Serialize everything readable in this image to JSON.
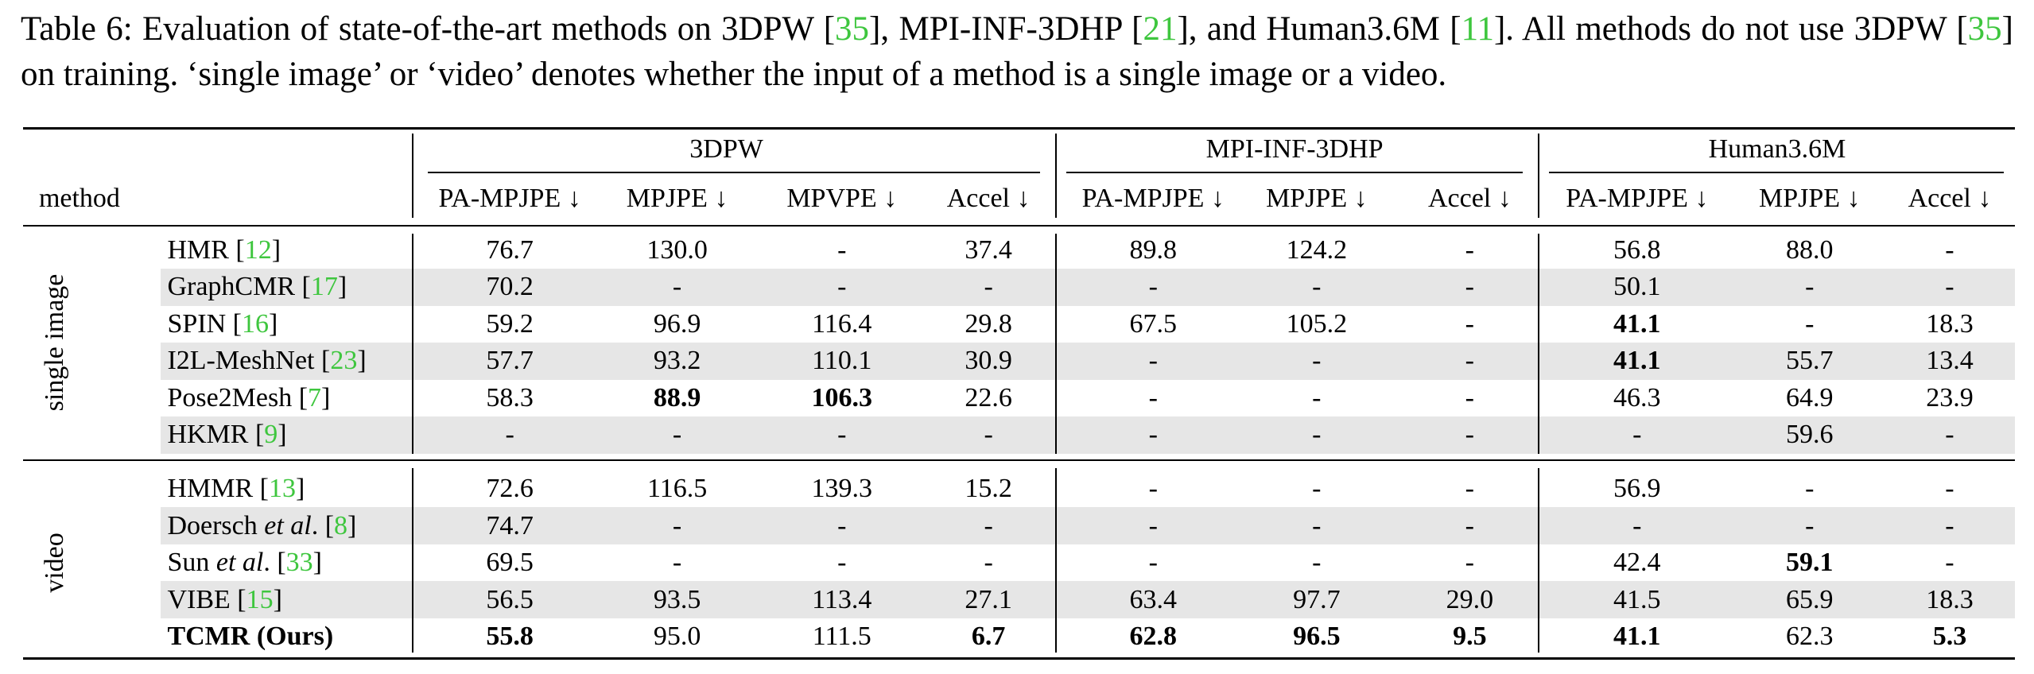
{
  "caption": [
    "Table 6: Evaluation of state-of-the-art methods on 3DPW [",
    "35",
    "], MPI-INF-3DHP [",
    "21",
    "], and Human3.6M [",
    "11",
    "]. All methods do not use 3DPW [",
    "35",
    "] on training. ‘single image’ or ‘video’ denotes whether the input of a method is a single image or a video."
  ],
  "table": {
    "method_header": "method",
    "datasets": [
      {
        "name": "3DPW",
        "columns": [
          "PA-MPJPE ↓",
          "MPJPE ↓",
          "MPVPE ↓",
          "Accel ↓"
        ]
      },
      {
        "name": "MPI-INF-3DHP",
        "columns": [
          "PA-MPJPE ↓",
          "MPJPE ↓",
          "Accel ↓"
        ]
      },
      {
        "name": "Human3.6M",
        "columns": [
          "PA-MPJPE ↓",
          "MPJPE ↓",
          "Accel ↓"
        ]
      }
    ],
    "groups": [
      {
        "label": "single image",
        "rows": [
          {
            "method": [
              {
                "text": "HMR ["
              },
              {
                "text": "12",
                "cite": true
              },
              {
                "text": "]"
              }
            ],
            "cells": [
              "76.7",
              "130.0",
              "-",
              "37.4",
              "89.8",
              "124.2",
              "-",
              "56.8",
              "88.0",
              "-"
            ],
            "bold": []
          },
          {
            "method": [
              {
                "text": "GraphCMR ["
              },
              {
                "text": "17",
                "cite": true
              },
              {
                "text": "]"
              }
            ],
            "cells": [
              "70.2",
              "-",
              "-",
              "-",
              "-",
              "-",
              "-",
              "50.1",
              "-",
              "-"
            ],
            "bold": []
          },
          {
            "method": [
              {
                "text": "SPIN ["
              },
              {
                "text": "16",
                "cite": true
              },
              {
                "text": "]"
              }
            ],
            "cells": [
              "59.2",
              "96.9",
              "116.4",
              "29.8",
              "67.5",
              "105.2",
              "-",
              "41.1",
              "-",
              "18.3"
            ],
            "bold": [
              7
            ]
          },
          {
            "method": [
              {
                "text": "I2L-MeshNet ["
              },
              {
                "text": "23",
                "cite": true
              },
              {
                "text": "]"
              }
            ],
            "cells": [
              "57.7",
              "93.2",
              "110.1",
              "30.9",
              "-",
              "-",
              "-",
              "41.1",
              "55.7",
              "13.4"
            ],
            "bold": [
              7
            ]
          },
          {
            "method": [
              {
                "text": "Pose2Mesh ["
              },
              {
                "text": "7",
                "cite": true
              },
              {
                "text": "]"
              }
            ],
            "cells": [
              "58.3",
              "88.9",
              "106.3",
              "22.6",
              "-",
              "-",
              "-",
              "46.3",
              "64.9",
              "23.9"
            ],
            "bold": [
              1,
              2
            ]
          },
          {
            "method": [
              {
                "text": "HKMR ["
              },
              {
                "text": "9",
                "cite": true
              },
              {
                "text": "]"
              }
            ],
            "cells": [
              "-",
              "-",
              "-",
              "-",
              "-",
              "-",
              "-",
              "-",
              "59.6",
              "-"
            ],
            "bold": []
          }
        ]
      },
      {
        "label": "video",
        "rows": [
          {
            "method": [
              {
                "text": "HMMR ["
              },
              {
                "text": "13",
                "cite": true
              },
              {
                "text": "]"
              }
            ],
            "cells": [
              "72.6",
              "116.5",
              "139.3",
              "15.2",
              "-",
              "-",
              "-",
              "56.9",
              "-",
              "-"
            ],
            "bold": []
          },
          {
            "method": [
              {
                "text": "Doersch "
              },
              {
                "text": "et al",
                "italic": true
              },
              {
                "text": ". ["
              },
              {
                "text": "8",
                "cite": true
              },
              {
                "text": "]"
              }
            ],
            "cells": [
              "74.7",
              "-",
              "-",
              "-",
              "-",
              "-",
              "-",
              "-",
              "-",
              "-"
            ],
            "bold": []
          },
          {
            "method": [
              {
                "text": "Sun "
              },
              {
                "text": "et al",
                "italic": true
              },
              {
                "text": ". ["
              },
              {
                "text": "33",
                "cite": true
              },
              {
                "text": "]"
              }
            ],
            "cells": [
              "69.5",
              "-",
              "-",
              "-",
              "-",
              "-",
              "-",
              "42.4",
              "59.1",
              "-"
            ],
            "bold": [
              8
            ]
          },
          {
            "method": [
              {
                "text": "VIBE ["
              },
              {
                "text": "15",
                "cite": true
              },
              {
                "text": "]"
              }
            ],
            "cells": [
              "56.5",
              "93.5",
              "113.4",
              "27.1",
              "63.4",
              "97.7",
              "29.0",
              "41.5",
              "65.9",
              "18.3"
            ],
            "bold": []
          },
          {
            "method": [
              {
                "text": "TCMR (Ours)",
                "bold": true
              }
            ],
            "cells": [
              "55.8",
              "95.0",
              "111.5",
              "6.7",
              "62.8",
              "96.5",
              "9.5",
              "41.1",
              "62.3",
              "5.3"
            ],
            "bold": [
              0,
              3,
              4,
              5,
              6,
              7,
              9
            ]
          }
        ]
      }
    ]
  }
}
